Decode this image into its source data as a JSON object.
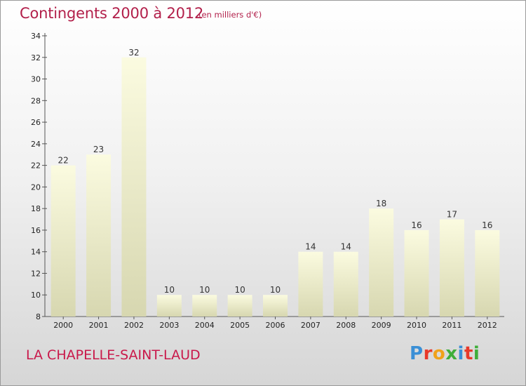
{
  "header": {
    "title": "Contingents 2000 à 2012",
    "subtitle": "(en milliers d'€)"
  },
  "footer": {
    "commune": "LA CHAPELLE-SAINT-LAUD",
    "logo": "Proxiti"
  },
  "colors": {
    "title": "#b21f4a",
    "bar_top": "#fbfbe0",
    "bar_bottom": "#d7d7b0",
    "logo_letters": [
      "#3a8fd6",
      "#e8392a",
      "#f0a21a",
      "#3fae3a",
      "#3a8fd6",
      "#e8392a",
      "#3fae3a"
    ]
  },
  "chart_data": {
    "type": "bar",
    "categories": [
      "2000",
      "2001",
      "2002",
      "2003",
      "2004",
      "2005",
      "2006",
      "2007",
      "2008",
      "2009",
      "2010",
      "2011",
      "2012"
    ],
    "values": [
      22,
      23,
      32,
      10,
      10,
      10,
      10,
      14,
      14,
      18,
      16,
      17,
      16
    ],
    "yticks": [
      8,
      10,
      12,
      14,
      16,
      18,
      20,
      22,
      24,
      26,
      28,
      30,
      32,
      34
    ],
    "ylim": [
      8,
      34
    ],
    "grid": false
  }
}
